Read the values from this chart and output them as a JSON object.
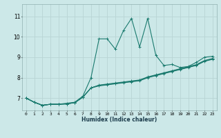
{
  "xlabel": "Humidex (Indice chaleur)",
  "bg_color": "#cce8e8",
  "grid_color_major": "#b8d4d4",
  "grid_color_minor": "#d4e8e8",
  "line_color": "#1a7a6e",
  "xlim": [
    -0.5,
    23.5
  ],
  "ylim": [
    6.4,
    11.6
  ],
  "yticks": [
    7,
    8,
    9,
    10,
    11
  ],
  "xticks": [
    0,
    1,
    2,
    3,
    4,
    5,
    6,
    7,
    8,
    9,
    10,
    11,
    12,
    13,
    14,
    15,
    16,
    17,
    18,
    19,
    20,
    21,
    22,
    23
  ],
  "series": [
    [
      7.0,
      6.8,
      6.65,
      6.7,
      6.7,
      6.75,
      6.8,
      7.1,
      8.0,
      9.9,
      9.9,
      9.4,
      10.3,
      10.9,
      9.5,
      10.9,
      9.1,
      8.6,
      8.65,
      8.5,
      8.55,
      8.75,
      9.0,
      9.05
    ],
    [
      7.0,
      6.8,
      6.65,
      6.7,
      6.7,
      6.72,
      6.78,
      7.05,
      7.5,
      7.6,
      7.65,
      7.7,
      7.75,
      7.8,
      7.85,
      8.0,
      8.1,
      8.2,
      8.3,
      8.4,
      8.5,
      8.6,
      8.8,
      8.9
    ],
    [
      7.0,
      6.8,
      6.65,
      6.7,
      6.7,
      6.72,
      6.78,
      7.05,
      7.5,
      7.62,
      7.67,
      7.72,
      7.77,
      7.82,
      7.87,
      8.02,
      8.12,
      8.22,
      8.32,
      8.42,
      8.52,
      8.62,
      8.82,
      8.92
    ],
    [
      7.0,
      6.8,
      6.65,
      6.7,
      6.7,
      6.72,
      6.78,
      7.05,
      7.5,
      7.64,
      7.69,
      7.74,
      7.79,
      7.84,
      7.89,
      8.04,
      8.14,
      8.24,
      8.34,
      8.44,
      8.54,
      8.64,
      8.84,
      8.94
    ]
  ]
}
